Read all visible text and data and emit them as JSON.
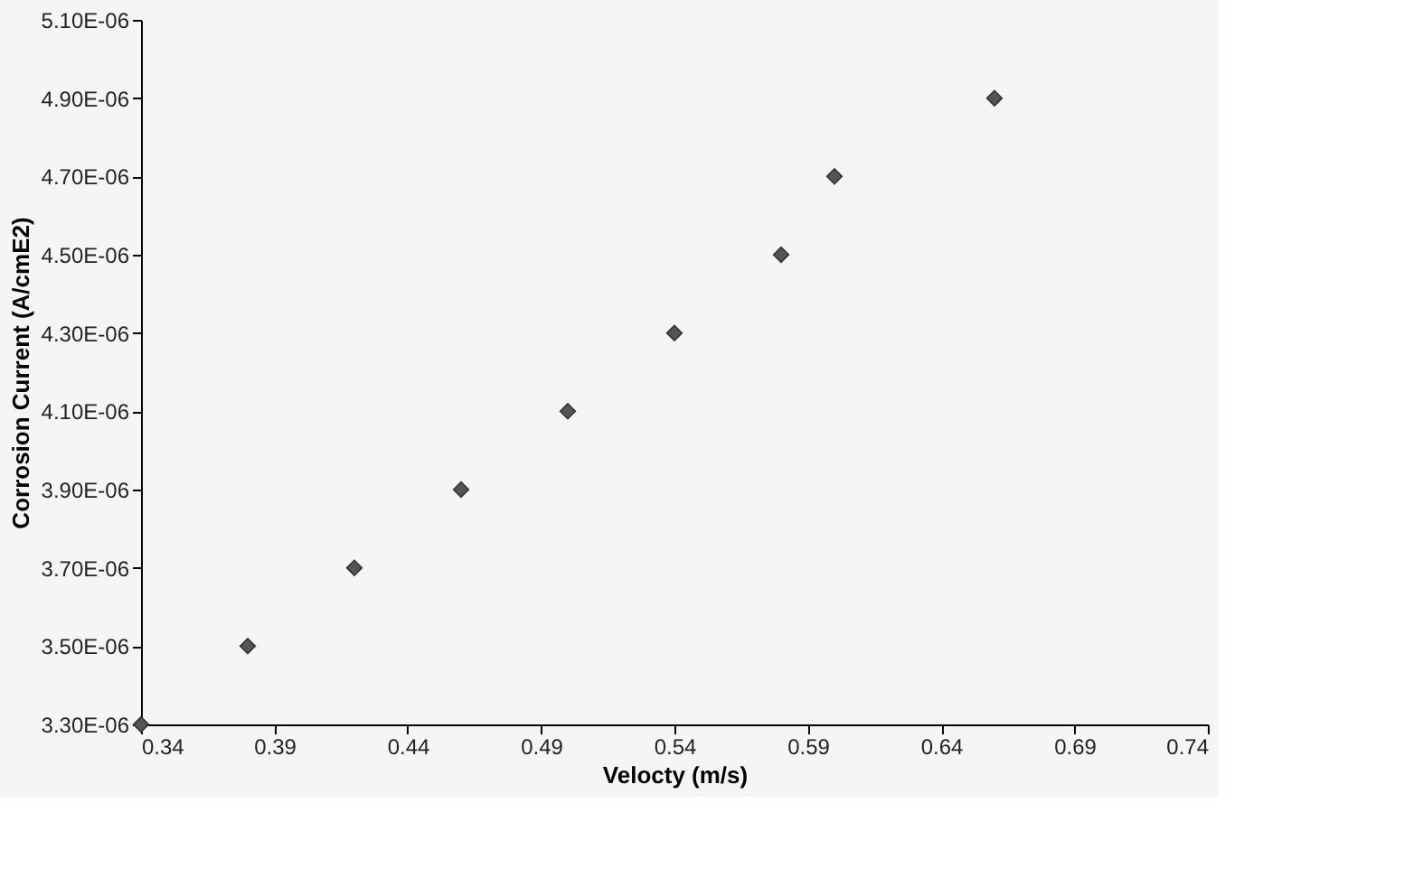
{
  "chart_data": {
    "type": "scatter",
    "xlabel": "Velocty (m/s)",
    "ylabel": "Corrosion Current (A/cmE2)",
    "x": [
      0.34,
      0.38,
      0.42,
      0.46,
      0.5,
      0.54,
      0.58,
      0.6,
      0.66
    ],
    "series": [
      {
        "color": "#555555",
        "values": [
          3.3e-06,
          3.5e-06,
          3.7e-06,
          3.9e-06,
          4.1e-06,
          4.3e-06,
          4.5e-06,
          4.7e-06,
          4.9e-06
        ]
      }
    ],
    "xlim": [
      0.34,
      0.74
    ],
    "xticks": [
      0.34,
      0.39,
      0.44,
      0.49,
      0.54,
      0.59,
      0.64,
      0.69,
      0.74
    ],
    "ylim": [
      3.3e-06,
      5.1e-06
    ],
    "yticks": [
      {
        "value": 3.3e-06,
        "label": "3.30E-06"
      },
      {
        "value": 3.5e-06,
        "label": "3.50E-06"
      },
      {
        "value": 3.7e-06,
        "label": "3.70E-06"
      },
      {
        "value": 3.9e-06,
        "label": "3.90E-06"
      },
      {
        "value": 4.1e-06,
        "label": "4.10E-06"
      },
      {
        "value": 4.3e-06,
        "label": "4.30E-06"
      },
      {
        "value": 4.5e-06,
        "label": "4.50E-06"
      },
      {
        "value": 4.7e-06,
        "label": "4.70E-06"
      },
      {
        "value": 4.9e-06,
        "label": "4.90E-06"
      },
      {
        "value": 5.1e-06,
        "label": "5.10E-06"
      }
    ],
    "grid": false,
    "marker": "diamond"
  }
}
